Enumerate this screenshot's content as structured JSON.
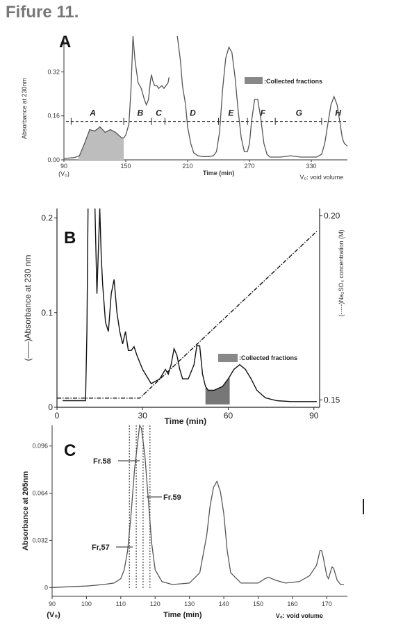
{
  "figure_title": "Fifure 11.",
  "chart_data": [
    {
      "panel": "A",
      "type": "line",
      "ylabel": "Absorbance at 230nm",
      "xlabel": "Time (min)",
      "x_ticks": [
        "90",
        "150",
        "210",
        "270",
        "330"
      ],
      "x_tick_values": [
        90,
        150,
        210,
        270,
        330
      ],
      "x_sub_label": "(V₀)",
      "y_ticks": [
        "0.00",
        "0.16",
        "0.32"
      ],
      "y_tick_values": [
        0,
        0.16,
        0.32
      ],
      "xlim": [
        90,
        365
      ],
      "ylim": [
        0,
        0.45
      ],
      "legend": ":Collected fractions",
      "note": "V₀: void volume",
      "fraction_labels": [
        {
          "label": "A",
          "x": 118
        },
        {
          "label": "B",
          "x": 164
        },
        {
          "label": "C",
          "x": 182
        },
        {
          "label": "D",
          "x": 215
        },
        {
          "label": "E",
          "x": 252
        },
        {
          "label": "F",
          "x": 283
        },
        {
          "label": "G",
          "x": 318
        },
        {
          "label": "H",
          "x": 356
        }
      ],
      "fraction_bounds": [
        97,
        148,
        175,
        188,
        240,
        268,
        295,
        340,
        368
      ],
      "dashed_level": 0.14,
      "series": [
        {
          "x": [
            90,
            100,
            105,
            110,
            115,
            120,
            125,
            130,
            135,
            140,
            143,
            146,
            148,
            150,
            153,
            155,
            157,
            159,
            162,
            165,
            168,
            170,
            172,
            174,
            175,
            176,
            178,
            180,
            182,
            185,
            187,
            189,
            191,
            192
          ],
          "y": [
            0.005,
            0.008,
            0.015,
            0.06,
            0.11,
            0.105,
            0.12,
            0.1,
            0.11,
            0.1,
            0.09,
            0.08,
            0.08,
            0.09,
            0.13,
            0.25,
            0.45,
            0.36,
            0.28,
            0.26,
            0.22,
            0.2,
            0.22,
            0.29,
            0.31,
            0.29,
            0.27,
            0.27,
            0.26,
            0.27,
            0.26,
            0.27,
            0.28,
            0.3
          ]
        },
        {
          "x": [
            200,
            203,
            205,
            208,
            210,
            213,
            216,
            220,
            225,
            230,
            235,
            238,
            241,
            244,
            247,
            250,
            253,
            256,
            259,
            262,
            265,
            268,
            270,
            272,
            275,
            278,
            281,
            284,
            287,
            290,
            300,
            310,
            320,
            330,
            335,
            340,
            343,
            346,
            349,
            352,
            355,
            358,
            360,
            362,
            365
          ],
          "y": [
            0.45,
            0.36,
            0.27,
            0.2,
            0.12,
            0.06,
            0.025,
            0.015,
            0.012,
            0.012,
            0.015,
            0.03,
            0.1,
            0.26,
            0.37,
            0.41,
            0.39,
            0.3,
            0.18,
            0.08,
            0.03,
            0.03,
            0.06,
            0.14,
            0.22,
            0.22,
            0.15,
            0.06,
            0.02,
            0.01,
            0.01,
            0.015,
            0.01,
            0.01,
            0.01,
            0.02,
            0.06,
            0.13,
            0.2,
            0.23,
            0.2,
            0.13,
            0.08,
            0.06,
            0.05
          ]
        }
      ],
      "shaded_ranges": [
        [
          104,
          148
        ]
      ]
    },
    {
      "panel": "B",
      "type": "line",
      "ylabel": "(——)Absorbance at 230 nm",
      "y2label": "(-·-·-)Na₂SO₄ concentration (M)",
      "xlabel": "Time (min)",
      "x_ticks": [
        "0",
        "30",
        "60",
        "90"
      ],
      "x_tick_values": [
        0,
        30,
        60,
        90
      ],
      "y_ticks": [
        "0",
        "0.1",
        "0.2"
      ],
      "y_tick_values": [
        0,
        0.1,
        0.2
      ],
      "y2_ticks": [
        "0.15",
        "0.20"
      ],
      "y2_tick_values": [
        0.15,
        0.2
      ],
      "xlim": [
        0,
        92
      ],
      "ylim": [
        0,
        0.21
      ],
      "y2lim": [
        0.148,
        0.202
      ],
      "legend": ":Collected fractions",
      "series": [
        {
          "x": [
            2,
            6,
            10,
            10.5,
            11,
            13,
            14,
            15,
            15.5,
            16,
            17,
            18,
            19,
            20,
            21,
            22,
            23,
            24,
            25,
            26,
            27,
            28,
            30,
            33,
            36,
            38,
            39,
            40,
            41,
            42,
            43,
            44,
            46,
            48,
            49,
            50,
            51,
            52,
            53,
            55,
            58,
            60,
            62,
            64,
            66,
            68,
            70,
            73,
            77,
            82,
            88,
            91
          ],
          "y": [
            0.007,
            0.007,
            0.007,
            0.08,
            0.25,
            0.25,
            0.12,
            0.21,
            0.16,
            0.13,
            0.09,
            0.08,
            0.12,
            0.135,
            0.1,
            0.08,
            0.067,
            0.08,
            0.06,
            0.06,
            0.064,
            0.055,
            0.04,
            0.025,
            0.03,
            0.04,
            0.035,
            0.045,
            0.062,
            0.055,
            0.04,
            0.03,
            0.03,
            0.045,
            0.065,
            0.065,
            0.035,
            0.022,
            0.018,
            0.018,
            0.022,
            0.03,
            0.04,
            0.045,
            0.04,
            0.03,
            0.018,
            0.01,
            0.007,
            0.006,
            0.006,
            0.006
          ]
        }
      ],
      "gradient": {
        "x": [
          0,
          29,
          91
        ],
        "y": [
          0.1505,
          0.1505,
          0.1958
        ]
      },
      "shaded_ranges": [
        [
          52,
          60.5
        ]
      ]
    },
    {
      "panel": "C",
      "type": "line",
      "ylabel": "Absorbance at 205nm",
      "xlabel": "Time (min)",
      "x_ticks": [
        "90",
        "100",
        "110",
        "120",
        "130",
        "140",
        "150",
        "160",
        "170"
      ],
      "x_tick_values": [
        90,
        100,
        110,
        120,
        130,
        140,
        150,
        160,
        170
      ],
      "x_sub_label": "(V₀)",
      "y_ticks": [
        "0",
        "0.032",
        "0.064",
        "0.096"
      ],
      "y_tick_values": [
        0,
        0.032,
        0.064,
        0.096
      ],
      "xlim": [
        90,
        176
      ],
      "ylim": [
        -0.006,
        0.11
      ],
      "note": "V₀: void volume",
      "fractions": [
        {
          "label": "Fr,57",
          "x": 113.5
        },
        {
          "label": "Fr.58",
          "x": 115.5
        },
        {
          "label": "Fr.59",
          "x": 117.5
        }
      ],
      "fraction_dividers": [
        112.5,
        114.5,
        116.5,
        118.5
      ],
      "series": [
        {
          "x": [
            90,
            95,
            100,
            105,
            108,
            110,
            111,
            112,
            113,
            114,
            115,
            115.5,
            116,
            117,
            118,
            119,
            120,
            122,
            125,
            130,
            133,
            135,
            136,
            137,
            138,
            139,
            140,
            141,
            142,
            145,
            150,
            152,
            153,
            155,
            158,
            162,
            165,
            167,
            168,
            168.5,
            169,
            170,
            170.5,
            171,
            171.5,
            172,
            173,
            174,
            175
          ],
          "y": [
            0.0,
            0.0005,
            0.001,
            0.002,
            0.003,
            0.006,
            0.012,
            0.025,
            0.05,
            0.08,
            0.1,
            0.11,
            0.108,
            0.09,
            0.06,
            0.03,
            0.012,
            0.004,
            0.002,
            0.003,
            0.01,
            0.035,
            0.055,
            0.068,
            0.072,
            0.065,
            0.05,
            0.025,
            0.01,
            0.003,
            0.003,
            0.006,
            0.007,
            0.005,
            0.003,
            0.004,
            0.008,
            0.015,
            0.025,
            0.025,
            0.02,
            0.008,
            0.006,
            0.01,
            0.014,
            0.013,
            0.005,
            0.002,
            0.002
          ]
        }
      ]
    }
  ]
}
